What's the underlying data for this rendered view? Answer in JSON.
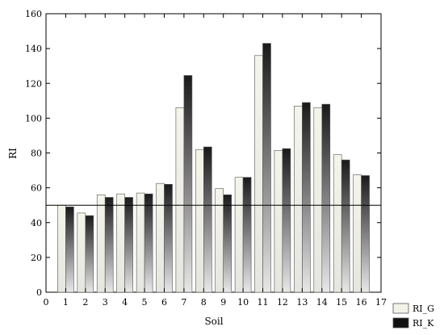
{
  "chart_data": {
    "type": "bar",
    "xlabel": "Soil",
    "ylabel": "RI",
    "xlim": [
      0,
      17
    ],
    "ylim": [
      0,
      160
    ],
    "x_ticks": [
      0,
      1,
      2,
      3,
      4,
      5,
      6,
      7,
      8,
      9,
      10,
      11,
      12,
      13,
      14,
      15,
      16,
      17
    ],
    "y_ticks": [
      0,
      20,
      40,
      60,
      80,
      100,
      120,
      140,
      160
    ],
    "categories": [
      1,
      2,
      3,
      4,
      5,
      6,
      7,
      8,
      9,
      10,
      11,
      12,
      13,
      14,
      15,
      16
    ],
    "series": [
      {
        "name": "RI_G",
        "color": "#f2f2e8",
        "values": [
          50,
          45.5,
          56,
          56.5,
          57,
          62.5,
          106,
          82,
          59.5,
          66,
          136,
          81.5,
          107,
          106,
          79,
          67.5
        ]
      },
      {
        "name": "RI_K",
        "color": "#111111",
        "values": [
          49,
          44,
          54.5,
          54.5,
          56.5,
          62,
          124.5,
          83.5,
          56,
          66,
          143,
          82.5,
          109,
          108,
          76,
          67
        ]
      }
    ],
    "reference_line": 50,
    "grid": false,
    "legend_position": "bottom-right"
  }
}
